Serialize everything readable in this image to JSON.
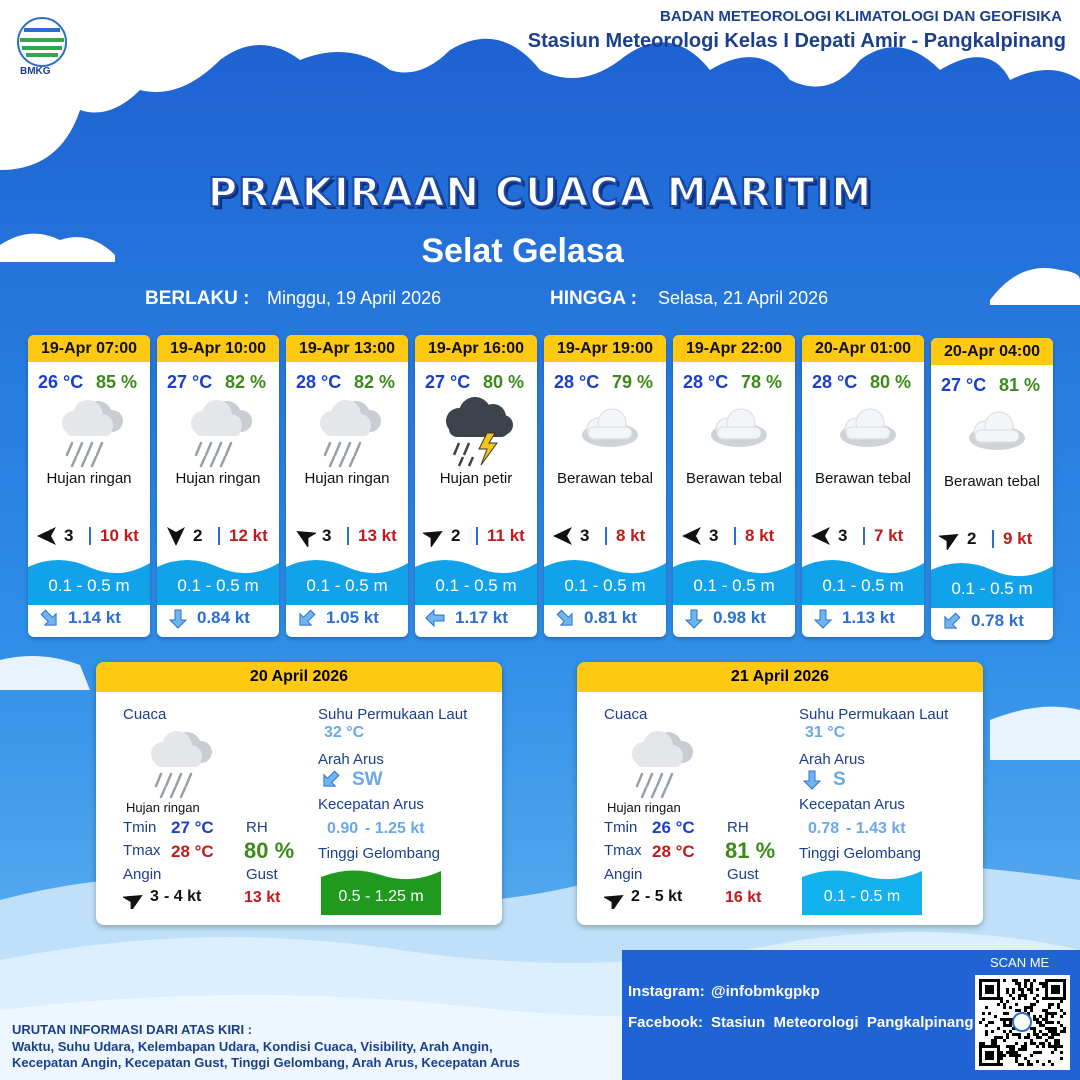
{
  "header": {
    "logo": "BMKG",
    "org": "BADAN METEOROLOGI KLIMATOLOGI DAN GEOFISIKA",
    "station": "Stasiun Meteorologi Kelas I Depati Amir - Pangkalpinang"
  },
  "title": "PRAKIRAAN CUACA MARITIM",
  "subtitle": "Selat Gelasa",
  "validity": {
    "from_label": "BERLAKU :",
    "from": "Minggu, 19 April 2026",
    "to_label": "HINGGA :",
    "to": "Selasa, 21 April 2026"
  },
  "cards": [
    {
      "time": "19-Apr 07:00",
      "temp": "26 °C",
      "rh": "85 %",
      "weather": "Hujan ringan",
      "wind": "3",
      "gust": "10 kt",
      "wave": "0.1 - 0.5 m",
      "current": "1.14 kt"
    },
    {
      "time": "19-Apr 10:00",
      "temp": "27 °C",
      "rh": "82 %",
      "weather": "Hujan ringan",
      "wind": "2",
      "gust": "12 kt",
      "wave": "0.1 - 0.5 m",
      "current": "0.84 kt"
    },
    {
      "time": "19-Apr 13:00",
      "temp": "28 °C",
      "rh": "82 %",
      "weather": "Hujan ringan",
      "wind": "3",
      "gust": "13 kt",
      "wave": "0.1 - 0.5 m",
      "current": "1.05 kt"
    },
    {
      "time": "19-Apr 16:00",
      "temp": "27 °C",
      "rh": "80 %",
      "weather": "Hujan petir",
      "wind": "2",
      "gust": "11 kt",
      "wave": "0.1 - 0.5 m",
      "current": "1.17 kt"
    },
    {
      "time": "19-Apr 19:00",
      "temp": "28 °C",
      "rh": "79 %",
      "weather": "Berawan tebal",
      "wind": "3",
      "gust": "8 kt",
      "wave": "0.1 - 0.5 m",
      "current": "0.81 kt"
    },
    {
      "time": "19-Apr 22:00",
      "temp": "28 °C",
      "rh": "78 %",
      "weather": "Berawan tebal",
      "wind": "3",
      "gust": "8 kt",
      "wave": "0.1 - 0.5 m",
      "current": "0.98 kt"
    },
    {
      "time": "20-Apr 01:00",
      "temp": "28 °C",
      "rh": "80 %",
      "weather": "Berawan tebal",
      "wind": "3",
      "gust": "7 kt",
      "wave": "0.1 - 0.5 m",
      "current": "1.13 kt"
    },
    {
      "time": "20-Apr 04:00",
      "temp": "27 °C",
      "rh": "81 %",
      "weather": "Berawan tebal",
      "wind": "2",
      "gust": "9 kt",
      "wave": "0.1 - 0.5 m",
      "current": "0.78 kt"
    }
  ],
  "daily": [
    {
      "date": "20 April 2026",
      "labels": {
        "weather": "Cuaca",
        "tmin": "Tmin",
        "tmax": "Tmax",
        "rh": "RH",
        "wind": "Angin",
        "gust": "Gust",
        "sst": "Suhu Permukaan Laut",
        "current_dir": "Arah Arus",
        "current_speed": "Kecepatan Arus",
        "wave": "Tinggi Gelombang"
      },
      "weather": "Hujan ringan",
      "tmin": "27 °C",
      "tmax": "28 °C",
      "rh": "80 %",
      "wind_min": "3",
      "wind_max": "- 4 kt",
      "gust": "13 kt",
      "sst": "32 °C",
      "current_dir": "SW",
      "current_min": "0.90",
      "current_max": "- 1.25 kt",
      "wave": "0.5 - 1.25 m",
      "wave_color": "#1f9a1f"
    },
    {
      "date": "21 April 2026",
      "labels": {
        "weather": "Cuaca",
        "tmin": "Tmin",
        "tmax": "Tmax",
        "rh": "RH",
        "wind": "Angin",
        "gust": "Gust",
        "sst": "Suhu Permukaan Laut",
        "current_dir": "Arah Arus",
        "current_speed": "Kecepatan Arus",
        "wave": "Tinggi Gelombang"
      },
      "weather": "Hujan ringan",
      "tmin": "26 °C",
      "tmax": "28 °C",
      "rh": "81 %",
      "wind_min": "2",
      "wind_max": "- 5 kt",
      "gust": "16 kt",
      "sst": "31 °C",
      "current_dir": "S",
      "current_min": "0.78",
      "current_max": "- 1.43 kt",
      "wave": "0.1 - 0.5 m",
      "wave_color": "#12b2ee"
    }
  ],
  "footer": {
    "scan": "SCAN ME",
    "instagram_label": "Instagram:",
    "instagram": "@infobmkgpkp",
    "facebook_label": "Facebook:",
    "facebook": "Stasiun  Meteorologi  Pangkalpinang",
    "legend_title": "URUTAN INFORMASI DARI ATAS KIRI :",
    "legend_lines": [
      "Waktu, Suhu Udara, Kelembapan Udara, Kondisi Cuaca, Visibility, Arah Angin,",
      "Kecepatan Angin, Kecepatan Gust, Tinggi Gelombang, Arah Arus, Kecepatan Arus"
    ]
  }
}
